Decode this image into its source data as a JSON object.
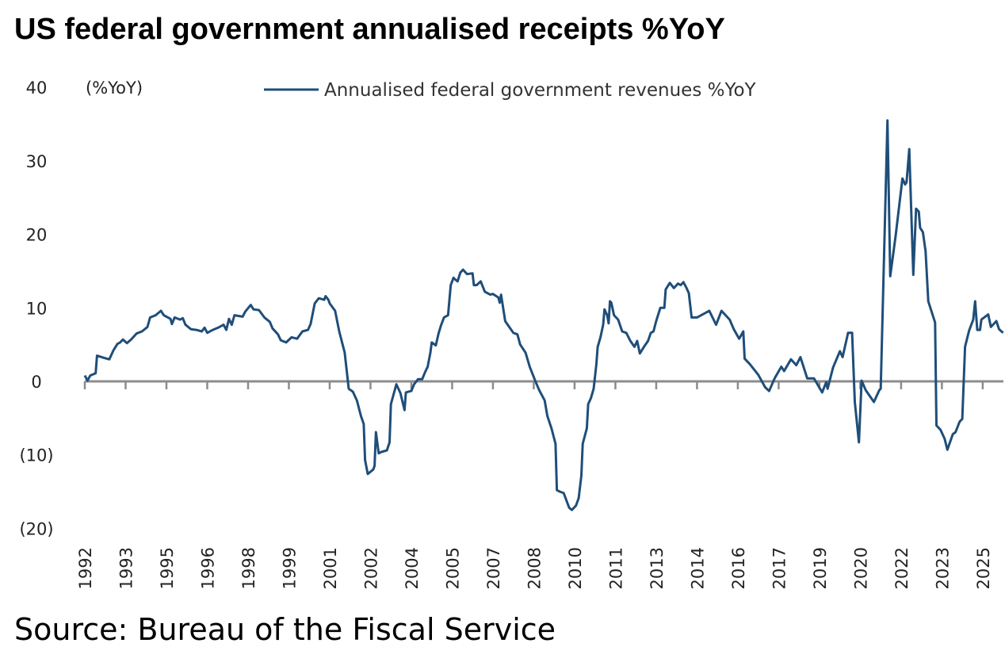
{
  "chart_data": {
    "type": "line",
    "title": "US federal government annualised receipts %YoY",
    "ylabel": "(%YoY)",
    "xlabel": "",
    "ylim": [
      -20,
      40
    ],
    "yticks": [
      40,
      30,
      20,
      10,
      0,
      -10,
      -20
    ],
    "ytick_labels": [
      "40",
      "30",
      "20",
      "10",
      "0",
      "(10)",
      "(20)"
    ],
    "xlim": [
      1992,
      2025.8
    ],
    "xtick_labels": [
      "1992",
      "1993",
      "1995",
      "1996",
      "1998",
      "1999",
      "2001",
      "2002",
      "2004",
      "2005",
      "2007",
      "2008",
      "2010",
      "2011",
      "2013",
      "2014",
      "2016",
      "2017",
      "2019",
      "2020",
      "2022",
      "2023",
      "2025"
    ],
    "grid": false,
    "legend_position": "top",
    "series": [
      {
        "name": "Annualised federal government revenues %YoY",
        "color": "#1F4E79",
        "points": [
          [
            1992.0,
            0.8
          ],
          [
            1992.1,
            0.1
          ],
          [
            1992.2,
            0.8
          ],
          [
            1992.4,
            1.1
          ],
          [
            1992.45,
            3.5
          ],
          [
            1992.7,
            3.2
          ],
          [
            1992.9,
            3.0
          ],
          [
            1993.05,
            4.2
          ],
          [
            1993.2,
            5.1
          ],
          [
            1993.3,
            5.3
          ],
          [
            1993.4,
            5.7
          ],
          [
            1993.55,
            5.2
          ],
          [
            1993.7,
            5.7
          ],
          [
            1993.9,
            6.5
          ],
          [
            1994.1,
            6.8
          ],
          [
            1994.3,
            7.4
          ],
          [
            1994.4,
            8.7
          ],
          [
            1994.6,
            9.0
          ],
          [
            1994.8,
            9.6
          ],
          [
            1994.9,
            9.0
          ],
          [
            1995.15,
            8.5
          ],
          [
            1995.2,
            7.8
          ],
          [
            1995.3,
            8.7
          ],
          [
            1995.5,
            8.4
          ],
          [
            1995.6,
            8.6
          ],
          [
            1995.7,
            7.7
          ],
          [
            1995.9,
            7.1
          ],
          [
            1996.1,
            7.0
          ],
          [
            1996.3,
            6.8
          ],
          [
            1996.4,
            7.3
          ],
          [
            1996.5,
            6.6
          ],
          [
            1996.7,
            7.0
          ],
          [
            1996.9,
            7.3
          ],
          [
            1997.1,
            7.7
          ],
          [
            1997.2,
            7.0
          ],
          [
            1997.3,
            8.5
          ],
          [
            1997.4,
            7.7
          ],
          [
            1997.5,
            9.0
          ],
          [
            1997.8,
            8.8
          ],
          [
            1997.9,
            9.5
          ],
          [
            1998.1,
            10.4
          ],
          [
            1998.2,
            9.8
          ],
          [
            1998.4,
            9.7
          ],
          [
            1998.6,
            8.7
          ],
          [
            1998.8,
            8.1
          ],
          [
            1998.9,
            7.2
          ],
          [
            1999.1,
            6.4
          ],
          [
            1999.2,
            5.6
          ],
          [
            1999.4,
            5.3
          ],
          [
            1999.6,
            6.0
          ],
          [
            1999.8,
            5.8
          ],
          [
            2000.0,
            6.8
          ],
          [
            2000.2,
            7.0
          ],
          [
            2000.3,
            7.8
          ],
          [
            2000.45,
            10.6
          ],
          [
            2000.6,
            11.3
          ],
          [
            2000.8,
            11.1
          ],
          [
            2000.85,
            11.6
          ],
          [
            2000.95,
            11.1
          ],
          [
            2001.0,
            10.6
          ],
          [
            2001.2,
            9.6
          ],
          [
            2001.35,
            6.8
          ],
          [
            2001.55,
            3.9
          ],
          [
            2001.7,
            -1.0
          ],
          [
            2001.85,
            -1.4
          ],
          [
            2002.0,
            -2.6
          ],
          [
            2002.15,
            -4.7
          ],
          [
            2002.25,
            -5.8
          ],
          [
            2002.3,
            -10.7
          ],
          [
            2002.4,
            -12.6
          ],
          [
            2002.6,
            -12.0
          ],
          [
            2002.65,
            -11.5
          ],
          [
            2002.7,
            -6.9
          ],
          [
            2002.8,
            -9.8
          ],
          [
            2002.9,
            -9.6
          ],
          [
            2003.1,
            -9.4
          ],
          [
            2003.2,
            -8.3
          ],
          [
            2003.25,
            -3.1
          ],
          [
            2003.45,
            -0.4
          ],
          [
            2003.6,
            -1.6
          ],
          [
            2003.75,
            -3.9
          ],
          [
            2003.8,
            -1.5
          ],
          [
            2004.0,
            -1.3
          ],
          [
            2004.1,
            -0.4
          ],
          [
            2004.25,
            0.3
          ],
          [
            2004.4,
            0.3
          ],
          [
            2004.5,
            1.2
          ],
          [
            2004.6,
            2.0
          ],
          [
            2004.7,
            3.9
          ],
          [
            2004.75,
            5.3
          ],
          [
            2004.9,
            4.9
          ],
          [
            2005.0,
            6.5
          ],
          [
            2005.1,
            7.7
          ],
          [
            2005.2,
            8.7
          ],
          [
            2005.35,
            9.0
          ],
          [
            2005.45,
            13.1
          ],
          [
            2005.55,
            14.1
          ],
          [
            2005.6,
            13.9
          ],
          [
            2005.7,
            13.6
          ],
          [
            2005.8,
            14.8
          ],
          [
            2005.9,
            15.2
          ],
          [
            2006.05,
            14.6
          ],
          [
            2006.25,
            14.7
          ],
          [
            2006.3,
            13.1
          ],
          [
            2006.4,
            13.1
          ],
          [
            2006.55,
            13.6
          ],
          [
            2006.7,
            12.2
          ],
          [
            2006.9,
            11.8
          ],
          [
            2007.0,
            11.9
          ],
          [
            2007.2,
            11.4
          ],
          [
            2007.25,
            10.7
          ],
          [
            2007.3,
            11.8
          ],
          [
            2007.45,
            8.2
          ],
          [
            2007.6,
            7.4
          ],
          [
            2007.75,
            6.6
          ],
          [
            2007.9,
            6.4
          ],
          [
            2008.0,
            5.0
          ],
          [
            2008.2,
            3.9
          ],
          [
            2008.35,
            2.0
          ],
          [
            2008.55,
            0.1
          ],
          [
            2008.7,
            -1.2
          ],
          [
            2008.9,
            -2.6
          ],
          [
            2009.0,
            -4.7
          ],
          [
            2009.15,
            -6.4
          ],
          [
            2009.3,
            -8.5
          ],
          [
            2009.35,
            -14.8
          ],
          [
            2009.45,
            -15.0
          ],
          [
            2009.6,
            -15.2
          ],
          [
            2009.8,
            -17.2
          ],
          [
            2009.9,
            -17.5
          ],
          [
            2010.05,
            -16.9
          ],
          [
            2010.15,
            -15.9
          ],
          [
            2010.25,
            -12.8
          ],
          [
            2010.3,
            -8.5
          ],
          [
            2010.45,
            -6.4
          ],
          [
            2010.5,
            -3.1
          ],
          [
            2010.6,
            -2.3
          ],
          [
            2010.7,
            -1.0
          ],
          [
            2010.8,
            2.3
          ],
          [
            2010.85,
            4.7
          ],
          [
            2010.95,
            6.0
          ],
          [
            2011.05,
            7.7
          ],
          [
            2011.1,
            9.8
          ],
          [
            2011.2,
            9.0
          ],
          [
            2011.25,
            7.9
          ],
          [
            2011.3,
            10.9
          ],
          [
            2011.35,
            10.7
          ],
          [
            2011.45,
            9.0
          ],
          [
            2011.6,
            8.4
          ],
          [
            2011.75,
            6.8
          ],
          [
            2011.9,
            6.6
          ],
          [
            2012.05,
            5.5
          ],
          [
            2012.2,
            4.7
          ],
          [
            2012.3,
            5.5
          ],
          [
            2012.4,
            3.8
          ],
          [
            2012.55,
            4.7
          ],
          [
            2012.7,
            5.5
          ],
          [
            2012.8,
            6.6
          ],
          [
            2012.9,
            6.8
          ],
          [
            2013.0,
            8.2
          ],
          [
            2013.15,
            10.0
          ],
          [
            2013.3,
            10.0
          ],
          [
            2013.35,
            12.5
          ],
          [
            2013.5,
            13.4
          ],
          [
            2013.65,
            12.7
          ],
          [
            2013.8,
            13.3
          ],
          [
            2013.9,
            13.1
          ],
          [
            2014.0,
            13.5
          ],
          [
            2014.1,
            12.8
          ],
          [
            2014.2,
            12.0
          ],
          [
            2014.3,
            8.7
          ],
          [
            2014.5,
            8.7
          ],
          [
            2014.95,
            9.6
          ],
          [
            2015.2,
            7.7
          ],
          [
            2015.4,
            9.6
          ],
          [
            2015.7,
            8.4
          ],
          [
            2015.85,
            7.1
          ],
          [
            2016.05,
            5.8
          ],
          [
            2016.2,
            6.8
          ],
          [
            2016.25,
            3.1
          ],
          [
            2016.45,
            2.3
          ],
          [
            2016.75,
            0.9
          ],
          [
            2017.0,
            -0.8
          ],
          [
            2017.15,
            -1.3
          ],
          [
            2017.35,
            0.4
          ],
          [
            2017.6,
            2.0
          ],
          [
            2017.7,
            1.4
          ],
          [
            2017.95,
            3.0
          ],
          [
            2018.15,
            2.2
          ],
          [
            2018.3,
            3.3
          ],
          [
            2018.55,
            0.4
          ],
          [
            2018.8,
            0.4
          ],
          [
            2019.1,
            -1.5
          ],
          [
            2019.25,
            -0.1
          ],
          [
            2019.3,
            -1.0
          ],
          [
            2019.5,
            1.9
          ],
          [
            2019.75,
            4.1
          ],
          [
            2019.85,
            3.3
          ],
          [
            2020.05,
            6.6
          ],
          [
            2020.2,
            6.6
          ],
          [
            2020.3,
            -2.8
          ],
          [
            2020.45,
            -8.3
          ],
          [
            2020.55,
            0.1
          ],
          [
            2020.7,
            -1.2
          ],
          [
            2021.0,
            -2.8
          ],
          [
            2021.2,
            -1.2
          ],
          [
            2021.25,
            -1.0
          ],
          [
            2021.5,
            35.5
          ],
          [
            2021.6,
            14.3
          ],
          [
            2021.8,
            19.8
          ],
          [
            2022.05,
            27.6
          ],
          [
            2022.15,
            26.8
          ],
          [
            2022.2,
            27.1
          ],
          [
            2022.3,
            31.6
          ],
          [
            2022.45,
            14.5
          ],
          [
            2022.55,
            23.5
          ],
          [
            2022.65,
            23.1
          ],
          [
            2022.7,
            20.9
          ],
          [
            2022.8,
            20.3
          ],
          [
            2022.9,
            17.7
          ],
          [
            2023.0,
            10.9
          ],
          [
            2023.25,
            8.0
          ],
          [
            2023.3,
            -6.0
          ],
          [
            2023.45,
            -6.6
          ],
          [
            2023.6,
            -7.8
          ],
          [
            2023.7,
            -9.3
          ],
          [
            2023.9,
            -7.2
          ],
          [
            2024.0,
            -6.9
          ],
          [
            2024.15,
            -5.5
          ],
          [
            2024.25,
            -5.1
          ],
          [
            2024.35,
            4.7
          ],
          [
            2024.5,
            6.9
          ],
          [
            2024.65,
            8.4
          ],
          [
            2024.72,
            10.9
          ],
          [
            2024.8,
            7.0
          ],
          [
            2024.9,
            7.0
          ],
          [
            2024.95,
            8.4
          ],
          [
            2025.2,
            9.1
          ],
          [
            2025.3,
            7.4
          ],
          [
            2025.5,
            8.2
          ],
          [
            2025.6,
            7.1
          ],
          [
            2025.75,
            6.6
          ]
        ]
      }
    ],
    "source": "Source: Bureau of the Fiscal Service"
  }
}
